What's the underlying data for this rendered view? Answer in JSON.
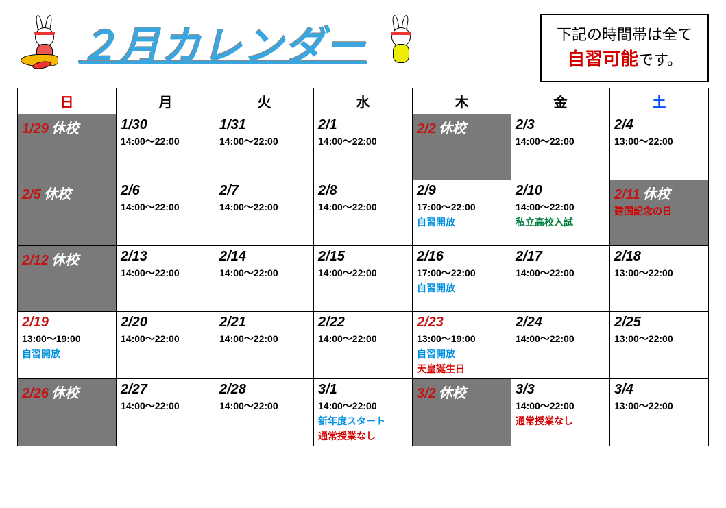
{
  "title": "２月カレンダー",
  "info_box": {
    "line1_pre": "下記の時間帯は全て",
    "emph": "自習可能",
    "line1_post": "です。"
  },
  "colors": {
    "title": "#3aa6e0",
    "sunday_header": "#d40000",
    "saturday_header": "#0050ff",
    "closed_bg": "#7a7a7a",
    "closed_date": "#c41414",
    "closed_label_text": "#ffffff",
    "note_blue": "#0090e0",
    "note_green": "#008040",
    "note_red": "#d40000",
    "border": "#000000",
    "background": "#ffffff",
    "info_emph": "#d40000"
  },
  "fontsize": {
    "title": 58,
    "day_header": 20,
    "date": 20,
    "hours": 14,
    "note": 14,
    "info": 22,
    "info_emph": 26
  },
  "closed_label": "休校",
  "day_headers": [
    "日",
    "月",
    "火",
    "水",
    "木",
    "金",
    "土"
  ],
  "weeks": [
    [
      {
        "date": "1/29",
        "closed": true
      },
      {
        "date": "1/30",
        "hours": "14:00～22:00"
      },
      {
        "date": "1/31",
        "hours": "14:00～22:00"
      },
      {
        "date": "2/1",
        "hours": "14:00～22:00"
      },
      {
        "date": "2/2",
        "closed": true
      },
      {
        "date": "2/3",
        "hours": "14:00～22:00"
      },
      {
        "date": "2/4",
        "hours": "13:00～22:00"
      }
    ],
    [
      {
        "date": "2/5",
        "closed": true
      },
      {
        "date": "2/6",
        "hours": "14:00～22:00"
      },
      {
        "date": "2/7",
        "hours": "14:00～22:00"
      },
      {
        "date": "2/8",
        "hours": "14:00～22:00"
      },
      {
        "date": "2/9",
        "hours": "17:00～22:00",
        "notes": [
          {
            "text": "自習開放",
            "color": "#0090e0"
          }
        ]
      },
      {
        "date": "2/10",
        "hours": "14:00～22:00",
        "notes": [
          {
            "text": "私立高校入試",
            "color": "#008040"
          }
        ]
      },
      {
        "date": "2/11",
        "closed": true,
        "notes": [
          {
            "text": "建国記念の日",
            "color": "#d40000"
          }
        ]
      }
    ],
    [
      {
        "date": "2/12",
        "closed": true
      },
      {
        "date": "2/13",
        "hours": "14:00～22:00"
      },
      {
        "date": "2/14",
        "hours": "14:00～22:00"
      },
      {
        "date": "2/15",
        "hours": "14:00～22:00"
      },
      {
        "date": "2/16",
        "hours": "17:00～22:00",
        "notes": [
          {
            "text": "自習開放",
            "color": "#0090e0"
          }
        ]
      },
      {
        "date": "2/17",
        "hours": "14:00～22:00"
      },
      {
        "date": "2/18",
        "hours": "13:00～22:00"
      }
    ],
    [
      {
        "date": "2/19",
        "holiday": true,
        "hours": "13:00～19:00",
        "notes": [
          {
            "text": "自習開放",
            "color": "#0090e0"
          }
        ]
      },
      {
        "date": "2/20",
        "hours": "14:00～22:00"
      },
      {
        "date": "2/21",
        "hours": "14:00～22:00"
      },
      {
        "date": "2/22",
        "hours": "14:00～22:00"
      },
      {
        "date": "2/23",
        "holiday": true,
        "hours": "13:00～19:00",
        "notes": [
          {
            "text": "自習開放",
            "color": "#0090e0"
          },
          {
            "text": "天皇誕生日",
            "color": "#d40000"
          }
        ]
      },
      {
        "date": "2/24",
        "hours": "14:00～22:00"
      },
      {
        "date": "2/25",
        "hours": "13:00～22:00"
      }
    ],
    [
      {
        "date": "2/26",
        "closed": true
      },
      {
        "date": "2/27",
        "hours": "14:00～22:00"
      },
      {
        "date": "2/28",
        "hours": "14:00～22:00"
      },
      {
        "date": "3/1",
        "hours": "14:00～22:00",
        "notes": [
          {
            "text": "新年度スタート",
            "color": "#0090e0"
          },
          {
            "text": "通常授業なし",
            "color": "#d40000"
          }
        ]
      },
      {
        "date": "3/2",
        "closed": true
      },
      {
        "date": "3/3",
        "hours": "14:00～22:00",
        "notes": [
          {
            "text": "通常授業なし",
            "color": "#d40000"
          }
        ]
      },
      {
        "date": "3/4",
        "hours": "13:00～22:00"
      }
    ]
  ]
}
